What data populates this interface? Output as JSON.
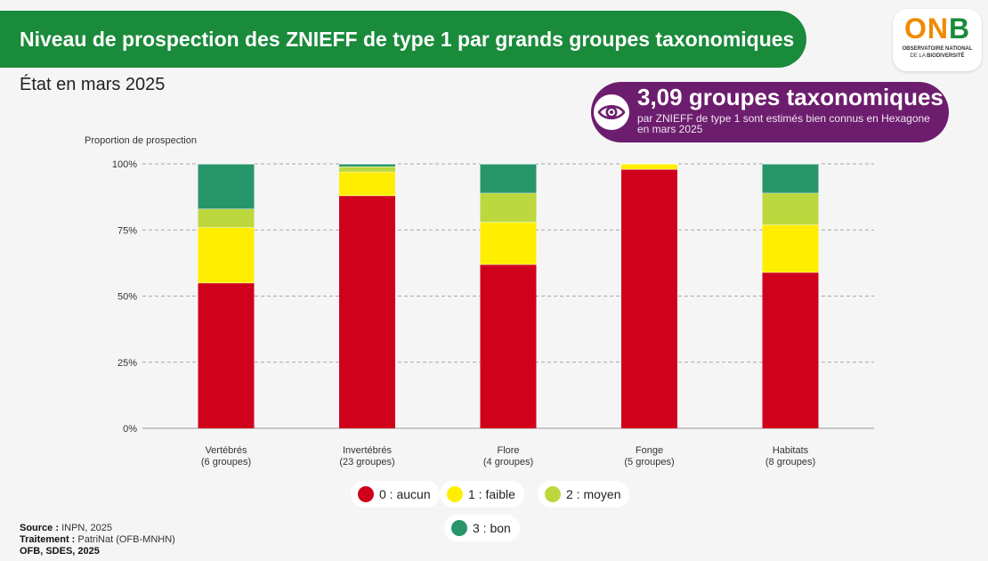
{
  "header": {
    "title": "Niveau de prospection des ZNIEFF de type 1 par grands groupes taxonomiques",
    "subtitle": "État en mars 2025"
  },
  "logo": {
    "letters_o_n": "ON",
    "letter_b": "B",
    "line1": "OBSERVATOIRE NATIONAL",
    "line2a": "DE LA ",
    "line2b": "BIODIVERSITÉ"
  },
  "callout": {
    "icon": "eye-icon",
    "headline": "3,09 groupes taxonomiques",
    "detail": "par ZNIEFF de type 1 sont estimés bien connus en Hexagone en mars 2025"
  },
  "footer": {
    "source_label": "Source :",
    "source_value": "INPN, 2025",
    "treatment_label": "Traitement :",
    "treatment_value": "PatriNat (OFB-MNHN)",
    "credit": "OFB, SDES, 2025"
  },
  "colors": {
    "aucun": "#d0021b",
    "faible": "#ffee00",
    "moyen": "#bcd83e",
    "bon": "#27966a",
    "banner": "#1a8a3b",
    "callout": "#6d1d6e"
  },
  "chart_data": {
    "type": "bar",
    "stacked": true,
    "ylabel": "Proportion de prospection",
    "ylim": [
      0,
      100
    ],
    "yticks": [
      "0%",
      "25%",
      "50%",
      "75%",
      "100%"
    ],
    "categories": [
      [
        "Vertébrés",
        "(6 groupes)"
      ],
      [
        "Invertébrés",
        "(23 groupes)"
      ],
      [
        "Flore",
        "(4 groupes)"
      ],
      [
        "Fonge",
        "(5 groupes)"
      ],
      [
        "Habitats",
        "(8 groupes)"
      ]
    ],
    "series": [
      {
        "name": "0 : aucun",
        "key": "aucun",
        "values": [
          55,
          88,
          62,
          98,
          59
        ]
      },
      {
        "name": "1 : faible",
        "key": "faible",
        "values": [
          21,
          9,
          16,
          2,
          18
        ]
      },
      {
        "name": "2 : moyen",
        "key": "moyen",
        "values": [
          7,
          2,
          11,
          0,
          12
        ]
      },
      {
        "name": "3 : bon",
        "key": "bon",
        "values": [
          17,
          1,
          11,
          0,
          11
        ]
      }
    ],
    "grid": true,
    "legend_position": "bottom"
  }
}
